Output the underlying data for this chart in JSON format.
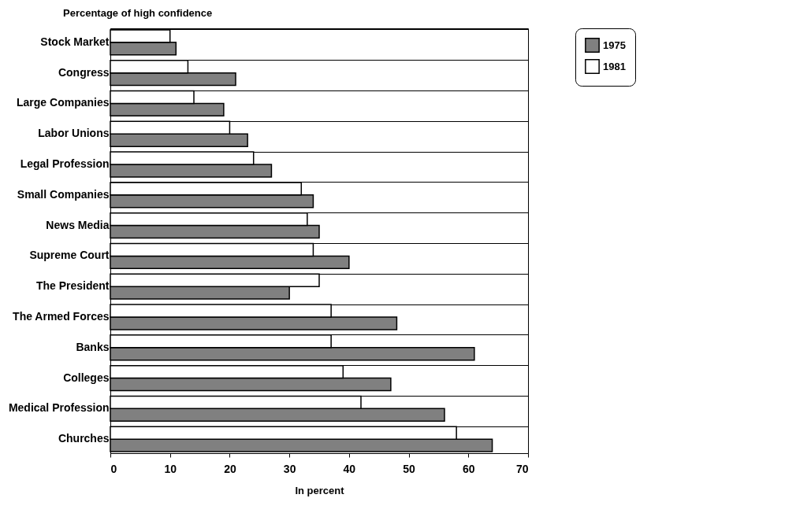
{
  "chart_data": {
    "type": "bar",
    "orientation": "horizontal",
    "title": "Percentage of high confidence",
    "xlabel": "In percent",
    "categories": [
      "Stock Market",
      "Congress",
      "Large Companies",
      "Labor Unions",
      "Legal Profession",
      "Small Companies",
      "News Media",
      "Supreme Court",
      "The President",
      "The Armed Forces",
      "Banks",
      "Colleges",
      "Medical Profession",
      "Churches"
    ],
    "series": [
      {
        "name": "1975",
        "color": "#808080",
        "values": [
          11,
          21,
          19,
          23,
          27,
          34,
          35,
          40,
          30,
          48,
          61,
          47,
          56,
          64
        ]
      },
      {
        "name": "1981",
        "color": "#ffffff",
        "values": [
          10,
          13,
          14,
          20,
          24,
          32,
          33,
          34,
          35,
          37,
          37,
          39,
          42,
          58
        ]
      }
    ],
    "xlim": [
      0,
      70
    ],
    "xticks": [
      0,
      10,
      20,
      30,
      40,
      50,
      60,
      70
    ],
    "grid": "y",
    "legend": "right"
  }
}
